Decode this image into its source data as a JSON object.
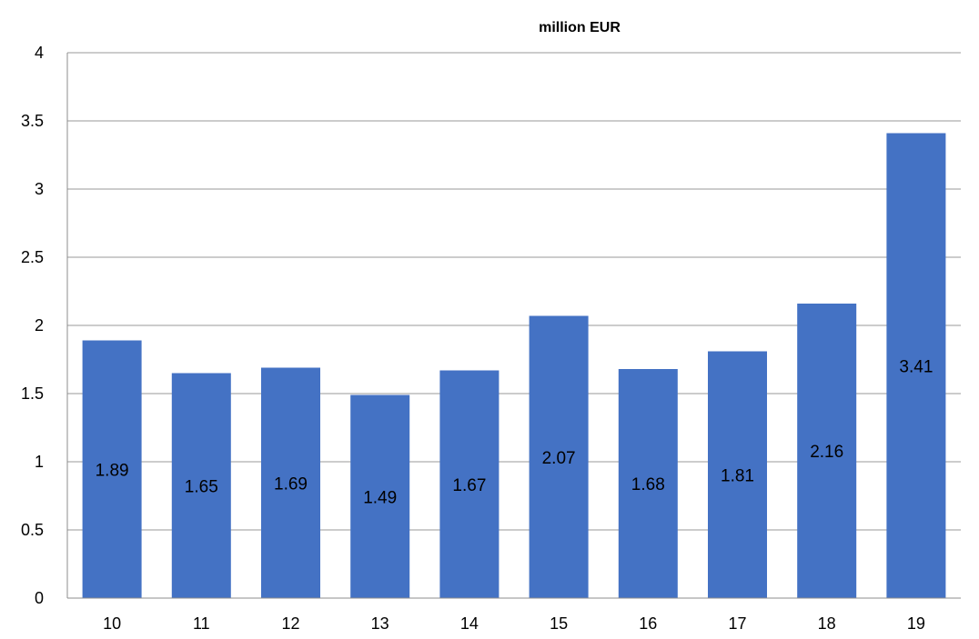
{
  "chart_data": {
    "type": "bar",
    "title": "million EUR",
    "xlabel": "",
    "ylabel": "",
    "categories": [
      "10",
      "11",
      "12",
      "13",
      "14",
      "15",
      "16",
      "17",
      "18",
      "19"
    ],
    "values": [
      1.89,
      1.65,
      1.69,
      1.49,
      1.67,
      2.07,
      1.68,
      1.81,
      2.16,
      3.41
    ],
    "data_labels": [
      "1.89",
      "1.65",
      "1.69",
      "1.49",
      "1.67",
      "2.07",
      "1.68",
      "1.81",
      "2.16",
      "3.41"
    ],
    "ylim": [
      0,
      4
    ],
    "yticks": [
      0,
      0.5,
      1,
      1.5,
      2,
      2.5,
      3,
      3.5,
      4
    ],
    "ytick_labels": [
      "0",
      "0.5",
      "1",
      "1.5",
      "2",
      "2.5",
      "3",
      "3.5",
      "4"
    ],
    "grid": true,
    "legend": "none",
    "bar_color": "#4472C4",
    "grid_color": "#9a9a9a"
  }
}
